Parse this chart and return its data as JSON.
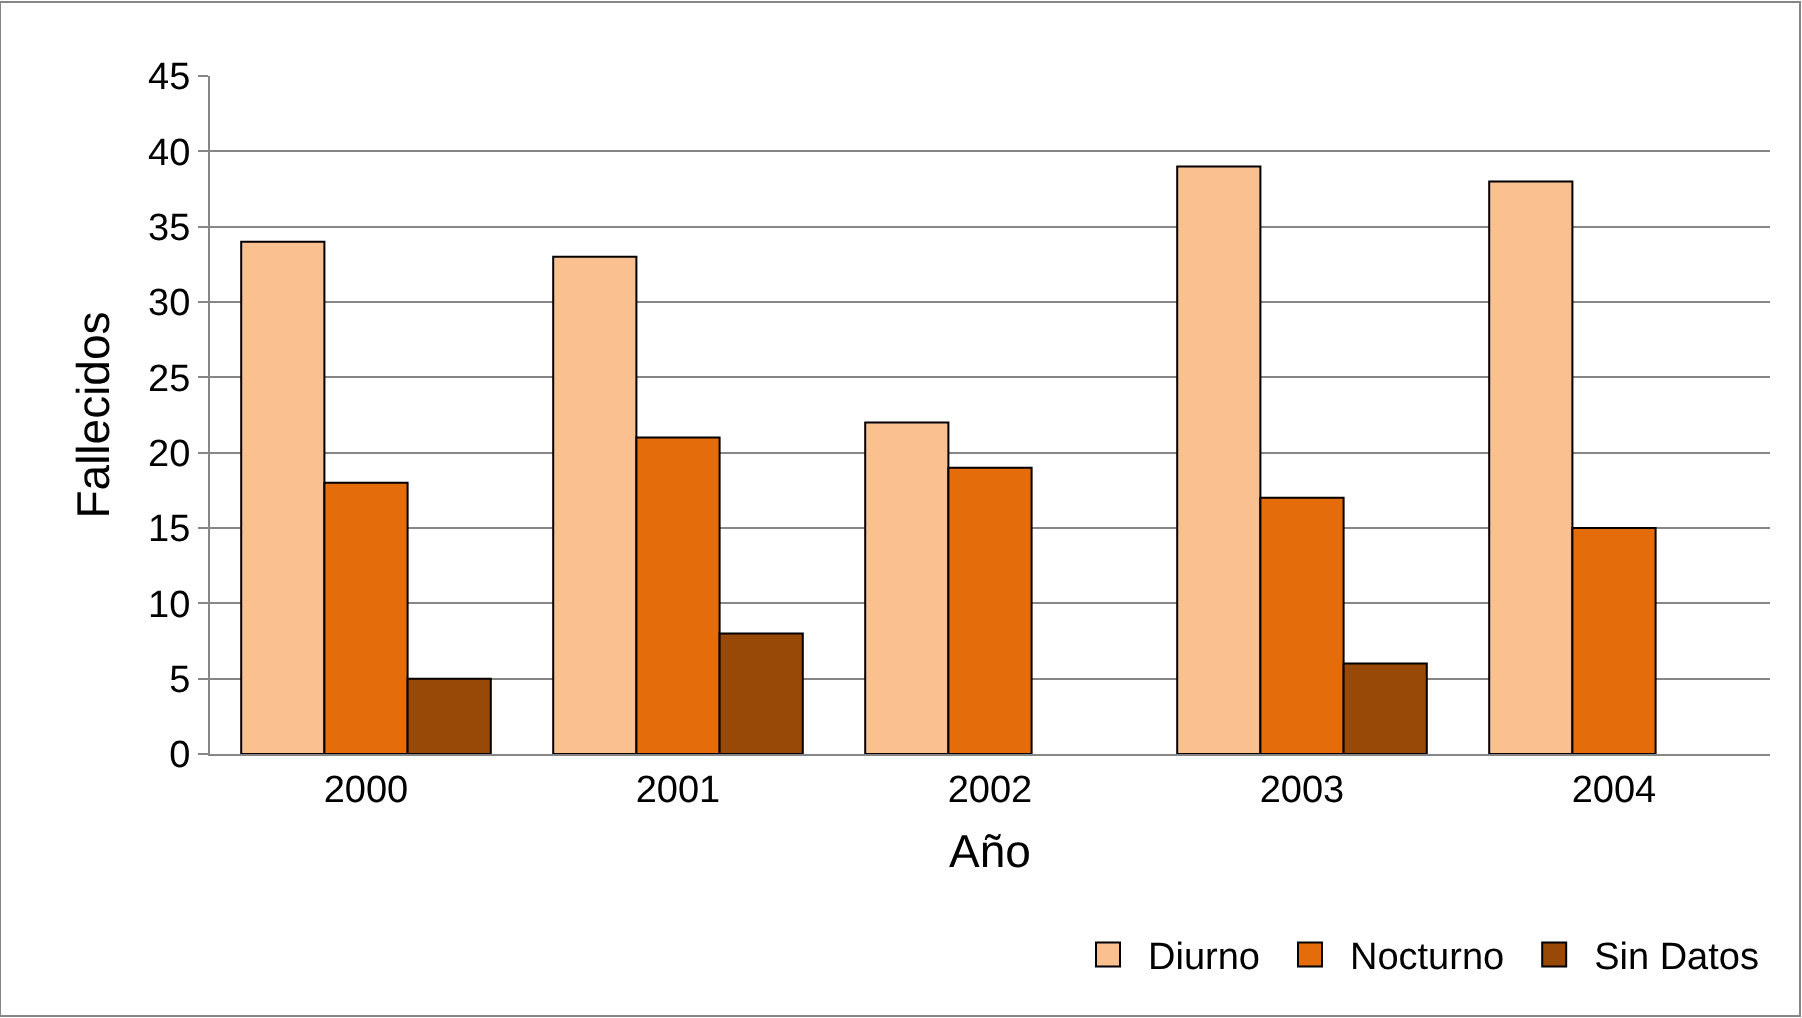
{
  "chart_data": {
    "type": "bar",
    "xlabel": "Año",
    "ylabel": "Fallecidos",
    "categories": [
      "2000",
      "2001",
      "2002",
      "2003",
      "2004"
    ],
    "series": [
      {
        "name": "Diurno",
        "color": "#fac090",
        "values": [
          34,
          33,
          22,
          39,
          38
        ]
      },
      {
        "name": "Nocturno",
        "color": "#e46c0a",
        "values": [
          18,
          21,
          19,
          17,
          15
        ]
      },
      {
        "name": "Sin Datos",
        "color": "#984807",
        "values": [
          5,
          8,
          null,
          6,
          null
        ]
      }
    ],
    "ylim": [
      0,
      45
    ],
    "yticks": [
      0,
      5,
      10,
      15,
      20,
      25,
      30,
      35,
      40,
      45
    ],
    "grid": "y",
    "legend": "bottom right"
  }
}
